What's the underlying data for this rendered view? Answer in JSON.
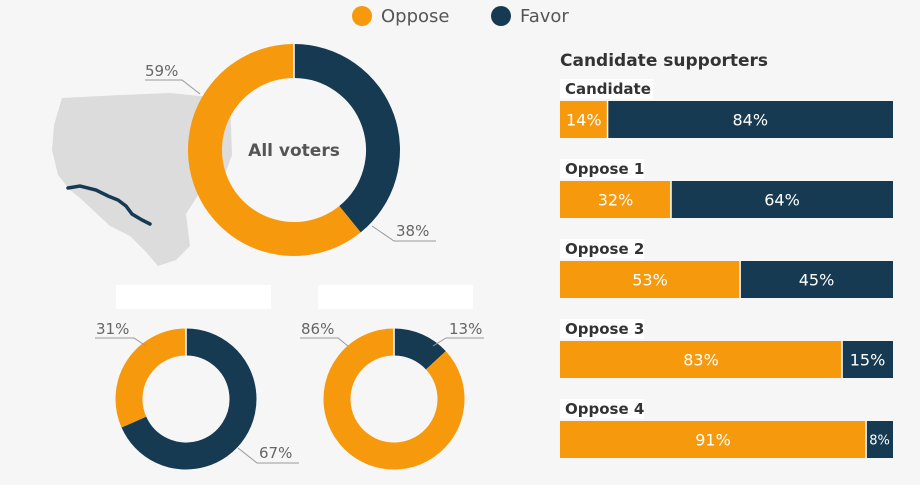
{
  "colors": {
    "oppose": "#f7990c",
    "favor": "#163a52",
    "map": "#dcdcdc",
    "border_line": "#163a52",
    "leader": "#999999",
    "background": "#f6f6f6"
  },
  "legend": [
    {
      "label": "Oppose",
      "color": "#f7990c"
    },
    {
      "label": "Favor",
      "color": "#163a52"
    }
  ],
  "chart_data": [
    {
      "type": "pie",
      "title": "All voters",
      "slices": [
        {
          "name": "Oppose",
          "value": 59,
          "label": "59%"
        },
        {
          "name": "Favor",
          "value": 38,
          "label": "38%"
        }
      ]
    },
    {
      "type": "pie",
      "title": "",
      "slices": [
        {
          "name": "Oppose",
          "value": 31,
          "label": "31%"
        },
        {
          "name": "Favor",
          "value": 67,
          "label": "67%"
        }
      ]
    },
    {
      "type": "pie",
      "title": "",
      "slices": [
        {
          "name": "Oppose",
          "value": 86,
          "label": "86%"
        },
        {
          "name": "Favor",
          "value": 13,
          "label": "13%"
        }
      ]
    },
    {
      "type": "bar",
      "orientation": "horizontal",
      "stacked": true,
      "title": "Candidate supporters",
      "categories": [
        "Candidate",
        "Oppose 1",
        "Oppose 2",
        "Oppose 3",
        "Oppose 4"
      ],
      "series": [
        {
          "name": "Oppose",
          "values": [
            14,
            32,
            53,
            83,
            91
          ],
          "labels": [
            "14%",
            "32%",
            "53%",
            "83%",
            "91%"
          ]
        },
        {
          "name": "Favor",
          "values": [
            84,
            64,
            45,
            15,
            8
          ],
          "labels": [
            "84%",
            "64%",
            "45%",
            "15%",
            "8%"
          ]
        }
      ]
    }
  ]
}
